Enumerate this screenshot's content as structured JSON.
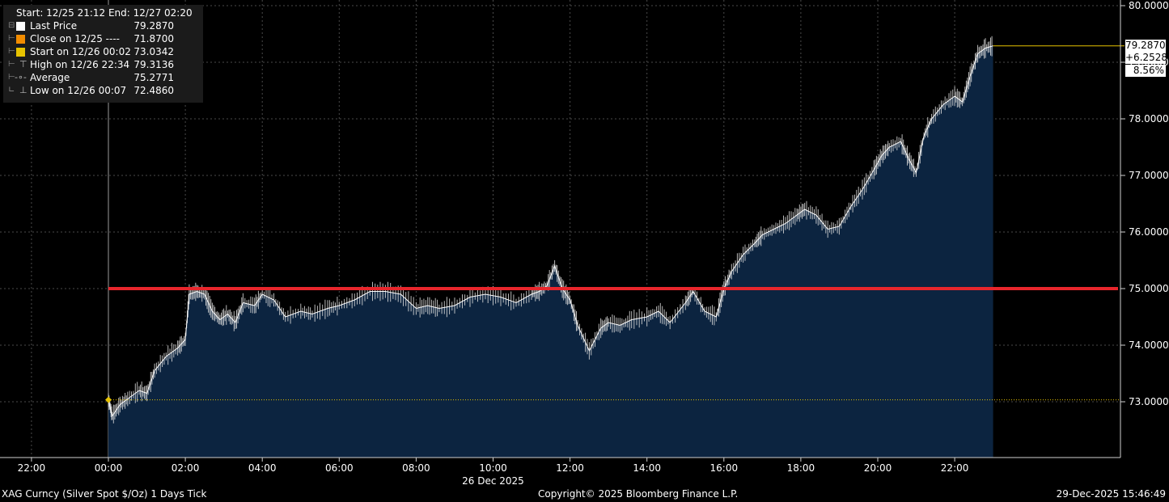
{
  "legend": {
    "title": "Start: 12/25 21:12 End: 12/27 02:20",
    "rows": [
      {
        "label": "Last Price",
        "value": "79.2870",
        "color": "#ffffff"
      },
      {
        "label": "Close on 12/25 ----",
        "value": "71.8700",
        "color": "#f28c00"
      },
      {
        "label": "Start on 12/26 00:02",
        "value": "73.0342",
        "color": "#e6c200"
      },
      {
        "label": "High on 12/26 22:34",
        "value": "79.3136",
        "symbol": "⊤"
      },
      {
        "label": "Average",
        "value": "75.2771",
        "symbol": "-∘-"
      },
      {
        "label": "Low on 12/26 00:07",
        "value": "72.4860",
        "symbol": "⊥"
      }
    ]
  },
  "last_tag": {
    "price": "79.2870",
    "change": "+6.2528",
    "pct": "8.56%"
  },
  "footer": {
    "left": "XAG Curncy (Silver Spot  $/Oz) 1 Days Tick",
    "center": "Copyright© 2025 Bloomberg Finance L.P.",
    "right": "29-Dec-2025 15:46:49"
  },
  "chart_data": {
    "type": "area",
    "date_label": "26 Dec 2025",
    "x_ticks": [
      "22:00",
      "00:00",
      "02:00",
      "04:00",
      "06:00",
      "08:00",
      "10:00",
      "12:00",
      "14:00",
      "16:00",
      "18:00",
      "20:00",
      "22:00"
    ],
    "y_ticks": [
      "80.0000",
      "79.0000",
      "78.0000",
      "77.0000",
      "76.0000",
      "75.0000",
      "74.0000",
      "73.0000"
    ],
    "ylim": [
      72.2,
      80.0
    ],
    "x_hours": [
      0,
      0.1,
      0.3,
      0.5,
      0.8,
      1.0,
      1.2,
      1.5,
      1.8,
      2.0,
      2.1,
      2.3,
      2.5,
      2.7,
      2.9,
      3.1,
      3.3,
      3.5,
      3.8,
      4.0,
      4.3,
      4.6,
      5.0,
      5.3,
      5.7,
      6.0,
      6.4,
      6.8,
      7.2,
      7.6,
      8.0,
      8.3,
      8.6,
      9.0,
      9.4,
      9.8,
      10.2,
      10.6,
      11.0,
      11.2,
      11.4,
      11.6,
      11.8,
      12.0,
      12.2,
      12.5,
      12.8,
      13.0,
      13.3,
      13.6,
      14.0,
      14.3,
      14.6,
      15.0,
      15.2,
      15.5,
      15.8,
      16.0,
      16.2,
      16.5,
      16.8,
      17.0,
      17.3,
      17.6,
      17.9,
      18.1,
      18.4,
      18.7,
      19.0,
      19.3,
      19.6,
      19.9,
      20.1,
      20.3,
      20.6,
      20.8,
      21.0,
      21.2,
      21.4,
      21.7,
      22.0,
      22.2,
      22.4,
      22.6,
      22.8,
      23.0
    ],
    "values": [
      73.03,
      72.75,
      72.95,
      73.05,
      73.2,
      73.15,
      73.55,
      73.8,
      73.95,
      74.1,
      74.9,
      74.95,
      74.9,
      74.6,
      74.45,
      74.55,
      74.4,
      74.75,
      74.7,
      74.9,
      74.8,
      74.5,
      74.6,
      74.55,
      74.65,
      74.7,
      74.8,
      74.95,
      74.95,
      74.9,
      74.65,
      74.7,
      74.65,
      74.7,
      74.85,
      74.9,
      74.85,
      74.75,
      74.9,
      74.95,
      75.05,
      75.4,
      75.0,
      74.8,
      74.35,
      73.9,
      74.3,
      74.4,
      74.35,
      74.45,
      74.5,
      74.6,
      74.4,
      74.75,
      74.95,
      74.6,
      74.5,
      75.0,
      75.3,
      75.6,
      75.8,
      75.95,
      76.05,
      76.15,
      76.3,
      76.4,
      76.3,
      76.05,
      76.1,
      76.45,
      76.75,
      77.1,
      77.35,
      77.5,
      77.6,
      77.3,
      77.05,
      77.7,
      78.0,
      78.25,
      78.4,
      78.3,
      78.75,
      79.15,
      79.25,
      79.29
    ],
    "horizontal_lines": [
      {
        "y": 75.0,
        "color": "#e8262c"
      },
      {
        "y": 73.0342,
        "color": "#e6c200"
      }
    ],
    "colors": {
      "area": "#0c2440",
      "line": "#ffffff",
      "grid": "#4a4a4a",
      "axis_text": "#ffffff"
    }
  }
}
